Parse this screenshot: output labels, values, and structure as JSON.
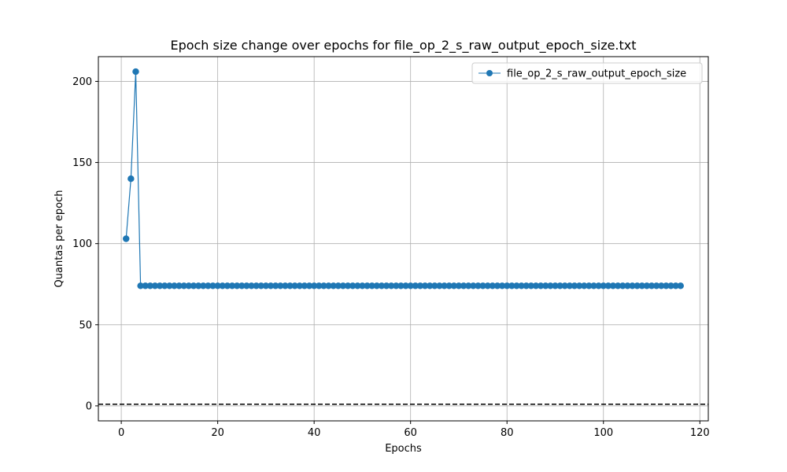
{
  "chart_data": {
    "type": "line",
    "title": "Epoch size change over epochs for file_op_2_s_raw_output_epoch_size.txt",
    "xlabel": "Epochs",
    "ylabel": "Quantas per epoch",
    "xlim": [
      -4.75,
      121.75
    ],
    "ylim": [
      -9.25,
      215.25
    ],
    "x_ticks": [
      0,
      20,
      40,
      60,
      80,
      100,
      120
    ],
    "y_ticks": [
      0,
      50,
      100,
      150,
      200
    ],
    "grid": true,
    "legend_position": "top-right",
    "reference_line": {
      "y": 1,
      "style": "dashed",
      "color": "#000000"
    },
    "series": [
      {
        "name": "file_op_2_s_raw_output_epoch_size",
        "color": "#1f77b4",
        "marker": "circle",
        "points": [
          {
            "x": 1,
            "y": 103
          },
          {
            "x": 2,
            "y": 140
          },
          {
            "x": 3,
            "y": 206
          }
        ],
        "constant_segment": {
          "x_start": 4,
          "x_end": 116,
          "y": 74
        }
      }
    ]
  }
}
